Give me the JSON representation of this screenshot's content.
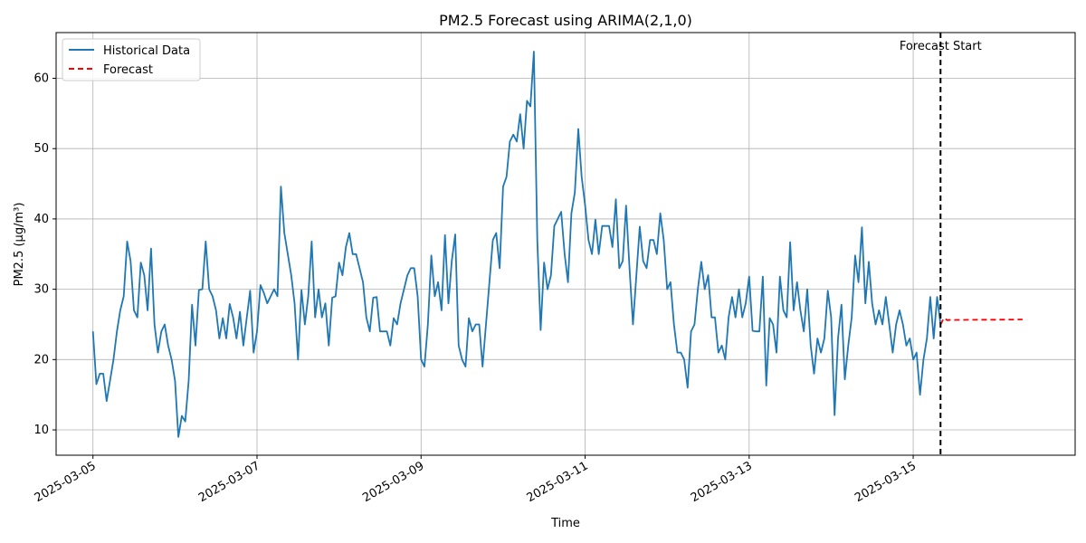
{
  "chart_data": {
    "type": "line",
    "title": "PM2.5 Forecast using ARIMA(2,1,0)",
    "xlabel": "Time",
    "ylabel": "PM2.5 (µg/m³)",
    "x_range": [
      "2025-03-04T13:13",
      "2025-03-16T23:23"
    ],
    "ylim": [
      6.4,
      66.5
    ],
    "y_ticks": [
      10,
      20,
      30,
      40,
      50,
      60
    ],
    "x_ticks": [
      "2025-03-05",
      "2025-03-07",
      "2025-03-09",
      "2025-03-11",
      "2025-03-13",
      "2025-03-15"
    ],
    "grid": true,
    "legend_position": "top-left",
    "forecast_start": {
      "x": "2025-03-15T08:00",
      "label": "Forecast Start",
      "color": "#000000"
    },
    "series": [
      {
        "name": "Historical Data",
        "color": "#1f77b4",
        "style": "solid",
        "start": "2025-03-05T00:00",
        "step_hours": 1,
        "values": [
          24,
          16.5,
          18,
          18,
          14.1,
          17,
          20,
          24,
          27,
          29,
          36.8,
          34,
          27,
          26,
          33.8,
          32,
          27,
          35.8,
          25,
          21,
          24,
          25,
          22,
          20,
          17,
          9,
          12,
          11.2,
          17,
          27.8,
          22,
          29.9,
          30,
          36.8,
          30,
          29,
          27,
          23,
          25.9,
          23,
          27.9,
          26,
          23,
          26.8,
          22,
          26,
          29.8,
          21,
          24,
          30.6,
          29.5,
          28,
          29,
          30,
          29,
          44.6,
          38,
          35,
          32,
          28,
          20,
          29.9,
          25,
          29,
          36.8,
          26,
          30,
          26,
          28,
          22,
          28.8,
          29,
          33.8,
          32,
          36,
          38,
          35,
          35,
          33,
          31,
          26,
          24,
          28.8,
          28.9,
          24,
          24,
          24,
          22,
          25.9,
          25,
          28,
          30,
          32,
          33,
          33,
          29,
          20,
          19,
          25,
          34.8,
          29,
          31,
          27,
          37.7,
          28,
          34,
          37.8,
          22,
          20,
          19,
          25.9,
          24,
          25,
          25,
          19,
          25,
          31,
          37,
          38,
          33,
          44.6,
          46,
          51,
          52,
          51,
          54.9,
          50,
          56.8,
          56,
          63.8,
          37,
          24.2,
          33.8,
          30,
          32,
          39,
          40,
          41,
          35,
          31,
          40.8,
          43.8,
          52.8,
          46,
          42,
          37,
          35,
          39.9,
          35,
          39,
          39,
          39,
          36,
          42.8,
          33,
          34,
          41.9,
          33,
          25,
          32,
          38.9,
          34,
          33,
          37,
          37,
          35,
          40.8,
          37,
          30,
          31,
          25,
          21,
          21,
          20,
          16,
          24,
          25,
          30,
          33.9,
          30,
          32,
          26,
          26,
          21,
          22,
          20,
          26,
          28.9,
          26,
          30,
          26,
          28,
          31.8,
          24.1,
          24,
          24,
          31.8,
          16.3,
          25.9,
          25,
          21,
          31.8,
          27,
          26,
          36.7,
          27,
          31,
          27,
          24,
          30,
          22,
          18,
          23,
          21,
          23,
          29.8,
          26,
          12.1,
          23,
          27.8,
          17.2,
          22,
          26,
          34.8,
          31,
          38.8,
          28,
          33.9,
          28,
          25,
          27,
          25,
          28.9,
          25,
          21,
          25,
          27,
          25,
          22,
          23,
          20,
          21,
          15,
          20,
          23,
          28.9,
          23,
          28.9,
          25
        ]
      },
      {
        "name": "Forecast",
        "color": "#ff0000",
        "style": "dashed",
        "start": "2025-03-15T08:00",
        "step_hours": 1,
        "values": [
          25,
          25.9,
          25.6,
          25.65,
          25.63,
          25.64,
          25.64,
          25.64,
          25.65,
          25.65,
          25.65,
          25.66,
          25.66,
          25.66,
          25.67,
          25.67,
          25.67,
          25.68,
          25.68,
          25.68,
          25.69,
          25.69,
          25.69,
          25.7,
          25.7
        ]
      }
    ]
  }
}
